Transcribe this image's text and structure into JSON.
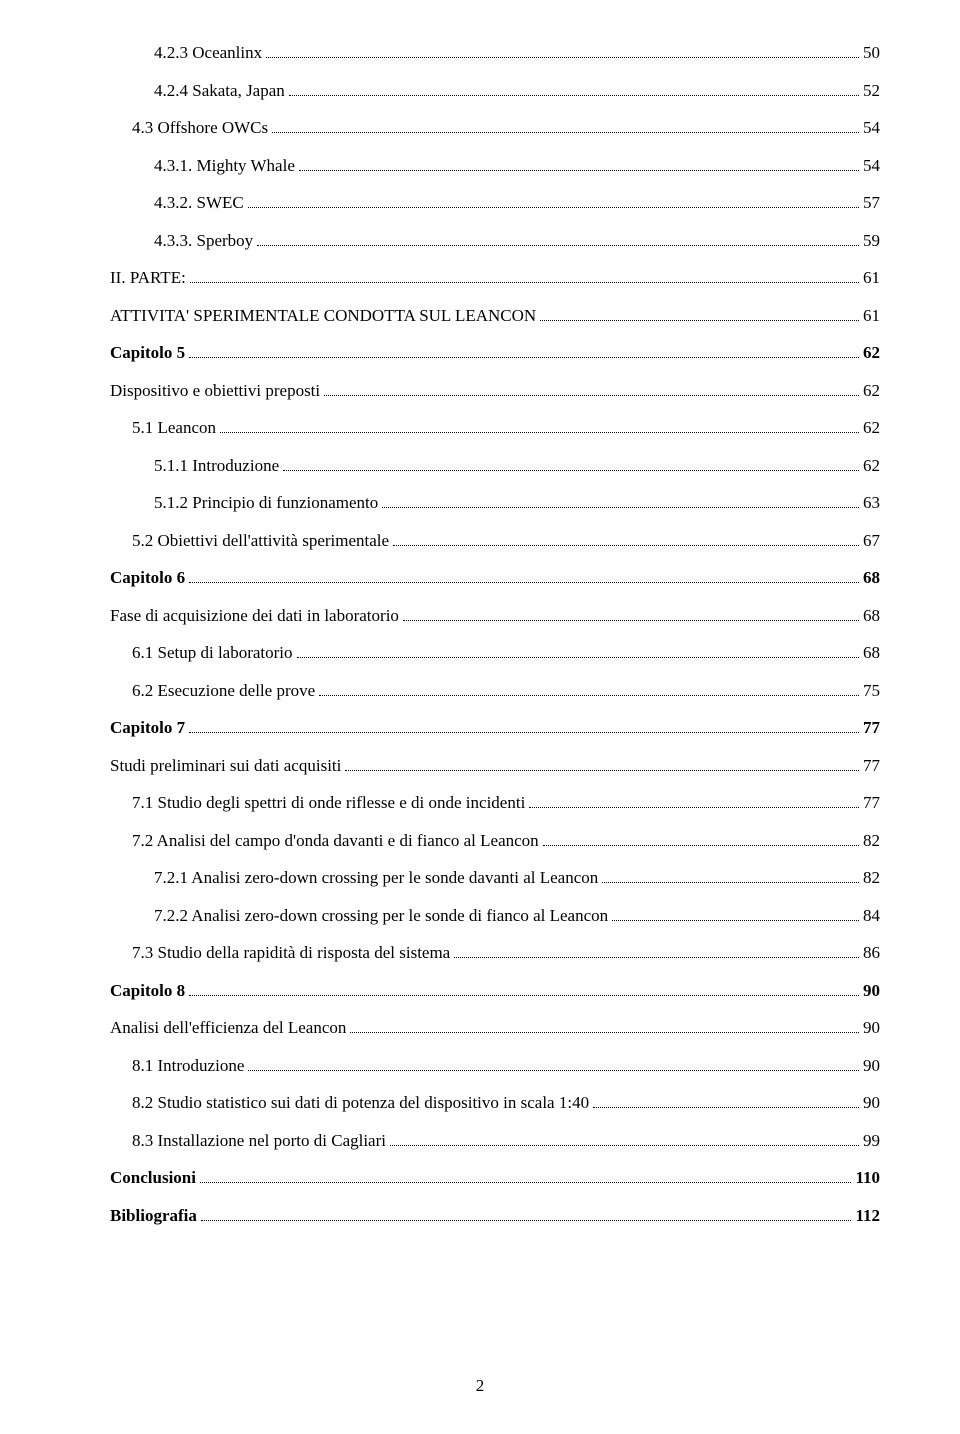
{
  "page_number": "2",
  "entries": [
    {
      "indent": 2,
      "bold": false,
      "label": "4.2.3  Oceanlinx",
      "page": "50"
    },
    {
      "indent": 2,
      "bold": false,
      "label": "4.2.4 Sakata, Japan",
      "page": "52"
    },
    {
      "indent": 1,
      "bold": false,
      "label": "4.3 Offshore OWCs",
      "page": "54"
    },
    {
      "indent": 2,
      "bold": false,
      "label": "4.3.1. Mighty Whale",
      "page": "54"
    },
    {
      "indent": 2,
      "bold": false,
      "label": "4.3.2. SWEC",
      "page": "57"
    },
    {
      "indent": 2,
      "bold": false,
      "label": "4.3.3. Sperboy",
      "page": "59"
    },
    {
      "indent": 0,
      "bold": false,
      "label": "II.   PARTE:",
      "page": "61"
    },
    {
      "indent": 0,
      "bold": false,
      "label": "ATTIVITA' SPERIMENTALE CONDOTTA SUL LEANCON",
      "page": "61"
    },
    {
      "indent": 0,
      "bold": true,
      "label": "Capitolo 5",
      "page": "62"
    },
    {
      "indent": 0,
      "bold": false,
      "label": "Dispositivo e obiettivi preposti",
      "page": "62"
    },
    {
      "indent": 1,
      "bold": false,
      "label": "5.1 Leancon",
      "page": "62"
    },
    {
      "indent": 2,
      "bold": false,
      "label": "5.1.1 Introduzione",
      "page": "62"
    },
    {
      "indent": 2,
      "bold": false,
      "label": "5.1.2 Principio di funzionamento",
      "page": "63"
    },
    {
      "indent": 1,
      "bold": false,
      "label": "5.2 Obiettivi dell'attività sperimentale",
      "page": "67"
    },
    {
      "indent": 0,
      "bold": true,
      "label": "Capitolo 6",
      "page": "68"
    },
    {
      "indent": 0,
      "bold": false,
      "label": "Fase di acquisizione dei dati in laboratorio",
      "page": "68"
    },
    {
      "indent": 1,
      "bold": false,
      "label": "6.1 Setup di laboratorio",
      "page": "68"
    },
    {
      "indent": 1,
      "bold": false,
      "label": "6.2 Esecuzione delle prove",
      "page": "75"
    },
    {
      "indent": 0,
      "bold": true,
      "label": "Capitolo 7",
      "page": "77"
    },
    {
      "indent": 0,
      "bold": false,
      "label": "Studi preliminari sui dati acquisiti",
      "page": "77"
    },
    {
      "indent": 1,
      "bold": false,
      "label": "7.1 Studio degli spettri di onde riflesse e di onde incidenti",
      "page": "77"
    },
    {
      "indent": 1,
      "bold": false,
      "label": "7.2 Analisi del campo d'onda davanti e di fianco al Leancon",
      "page": "82"
    },
    {
      "indent": 2,
      "bold": false,
      "label": "7.2.1 Analisi zero-down crossing per le sonde davanti al Leancon",
      "page": "82"
    },
    {
      "indent": 2,
      "bold": false,
      "label": "7.2.2 Analisi zero-down crossing per le sonde di fianco al Leancon",
      "page": "84"
    },
    {
      "indent": 1,
      "bold": false,
      "label": "7.3 Studio della rapidità di risposta del sistema",
      "page": "86"
    },
    {
      "indent": 0,
      "bold": true,
      "label": "Capitolo 8",
      "page": "90"
    },
    {
      "indent": 0,
      "bold": false,
      "label": "Analisi dell'efficienza del Leancon",
      "page": "90"
    },
    {
      "indent": 1,
      "bold": false,
      "label": "8.1 Introduzione",
      "page": "90"
    },
    {
      "indent": 1,
      "bold": false,
      "label": "8.2 Studio statistico sui dati di potenza del dispositivo in scala 1:40",
      "page": "90"
    },
    {
      "indent": 1,
      "bold": false,
      "label": "8.3 Installazione nel porto di Cagliari",
      "page": "99"
    },
    {
      "indent": 0,
      "bold": true,
      "label": "Conclusioni",
      "page": "110"
    },
    {
      "indent": 0,
      "bold": true,
      "label": "Bibliografia",
      "page": "112"
    }
  ]
}
